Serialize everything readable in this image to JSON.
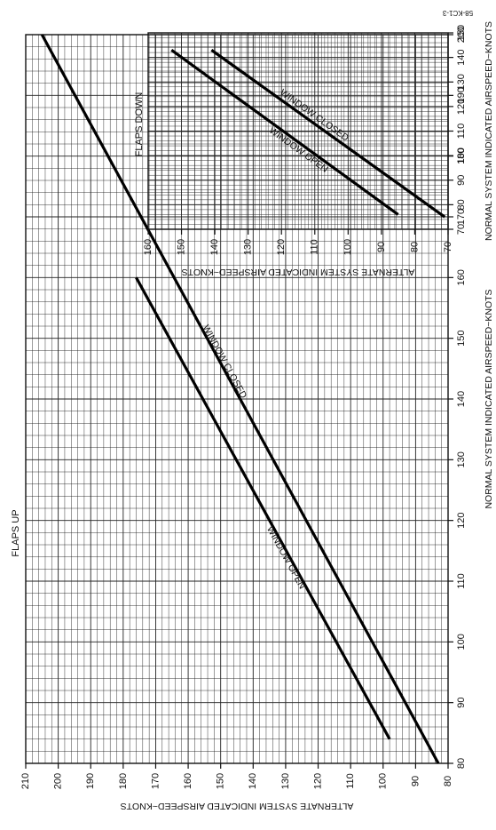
{
  "chart_data": [
    {
      "type": "line",
      "title": "FLAPS UP",
      "xlabel": "NORMAL SYSTEM INDICATED AIRSPEED~KNOTS",
      "ylabel": "ALTERNATE SYSTEM INDICATED AIRSPEED~KNOTS",
      "xlim": [
        80,
        200
      ],
      "ylim": [
        80,
        210
      ],
      "x_ticks": [
        "80",
        "90",
        "100",
        "110",
        "120",
        "130",
        "140",
        "150",
        "160",
        "170",
        "180",
        "190",
        "200"
      ],
      "y_ticks": [
        "80",
        "90",
        "100",
        "110",
        "120",
        "130",
        "140",
        "150",
        "160",
        "170",
        "180",
        "190",
        "200",
        "210"
      ],
      "grid": true,
      "orientation": "rotated 90° (normal airspeed runs up the page)",
      "series": [
        {
          "name": "WINDOW CLOSED",
          "x": [
            80,
            200
          ],
          "y": [
            83,
            205
          ]
        },
        {
          "name": "WINDOW OPEN",
          "x": [
            84,
            160
          ],
          "y": [
            98,
            176
          ]
        }
      ]
    },
    {
      "type": "line",
      "title": "FLAPS DOWN",
      "xlabel": "NORMAL SYSTEM INDICATED AIRSPEED~KNOTS",
      "ylabel": "ALTERNATE SYSTEM INDICATED AIRSPEED~KNOTS",
      "xlim": [
        70,
        150
      ],
      "ylim": [
        70,
        160
      ],
      "x_ticks": [
        "70",
        "80",
        "90",
        "100",
        "110",
        "120",
        "130",
        "140",
        "150"
      ],
      "y_ticks": [
        "70",
        "80",
        "90",
        "100",
        "110",
        "120",
        "130",
        "140",
        "150",
        "160"
      ],
      "grid": true,
      "orientation": "rotated 90° (normal airspeed runs up the page)",
      "series": [
        {
          "name": "WINDOW CLOSED",
          "x": [
            75,
            143
          ],
          "y": [
            71,
            141
          ]
        },
        {
          "name": "WINDOW OPEN",
          "x": [
            76,
            143
          ],
          "y": [
            85,
            153
          ]
        }
      ]
    }
  ],
  "figure_code": "58-KC1-3"
}
